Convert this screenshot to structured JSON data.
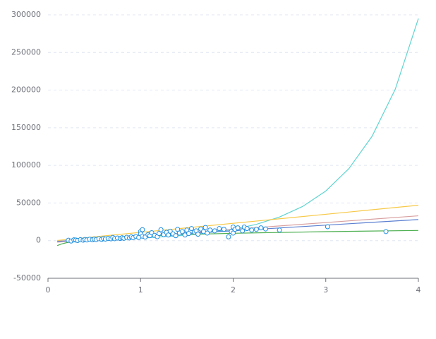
{
  "chart_data": {
    "type": "scatter",
    "xlim": [
      0,
      4
    ],
    "xticks": [
      0,
      1,
      2,
      3,
      4
    ],
    "ylim": [
      -50000,
      300000
    ],
    "yticks": [
      -50000,
      0,
      50000,
      100000,
      150000,
      200000,
      250000,
      300000
    ],
    "grid": true,
    "series": [
      {
        "kind": "line",
        "color": "#5fd4d0",
        "x": [
          0.2,
          0.5,
          1,
          1.5,
          2,
          2.25,
          2.5,
          2.75,
          3,
          3.25,
          3.5,
          3.75,
          4
        ],
        "values": [
          1025,
          1603,
          3372,
          7090,
          14900,
          21600,
          31350,
          45400,
          65900,
          95700,
          138600,
          201000,
          295000
        ]
      },
      {
        "kind": "line",
        "color": "#f7c948",
        "x": [
          0.1,
          4
        ],
        "values": [
          200,
          47000
        ]
      },
      {
        "kind": "line",
        "color": "#d9a0a0",
        "x": [
          0.1,
          4
        ],
        "values": [
          -2000,
          33000
        ]
      },
      {
        "kind": "line",
        "color": "#5b7fd0",
        "x": [
          0.1,
          4
        ],
        "values": [
          -1000,
          28000
        ]
      },
      {
        "kind": "line",
        "color": "#4caf50",
        "x": [
          0.1,
          0.15,
          0.2,
          0.3,
          0.5,
          0.75,
          1,
          1.5,
          2,
          3,
          4
        ],
        "values": [
          -6490,
          -4290,
          -2730,
          -540,
          2230,
          4430,
          5990,
          8190,
          9750,
          11940,
          13500
        ]
      },
      {
        "kind": "scatter",
        "color": "#1f8ee0",
        "x": [
          0.22,
          0.25,
          0.28,
          0.3,
          0.32,
          0.35,
          0.38,
          0.4,
          0.42,
          0.45,
          0.48,
          0.5,
          0.52,
          0.55,
          0.58,
          0.6,
          0.62,
          0.65,
          0.68,
          0.7,
          0.72,
          0.75,
          0.78,
          0.8,
          0.82,
          0.85,
          0.88,
          0.9,
          0.92,
          0.95,
          0.98,
          1.0,
          1.0,
          1.02,
          1.02,
          1.05,
          1.08,
          1.1,
          1.12,
          1.15,
          1.18,
          1.2,
          1.22,
          1.25,
          1.28,
          1.3,
          1.32,
          1.35,
          1.38,
          1.4,
          1.42,
          1.45,
          1.48,
          1.5,
          1.52,
          1.55,
          1.58,
          1.6,
          1.62,
          1.65,
          1.68,
          1.7,
          1.72,
          1.75,
          1.8,
          1.85,
          1.9,
          1.95,
          1.98,
          2.0,
          2.0,
          2.02,
          2.05,
          2.1,
          2.12,
          2.15,
          2.2,
          2.25,
          2.3,
          2.35,
          2.5,
          3.02,
          3.65
        ],
        "values": [
          500,
          -500,
          1000,
          800,
          200,
          1200,
          600,
          1500,
          900,
          1800,
          1100,
          2000,
          1400,
          2500,
          1700,
          2800,
          2100,
          3000,
          2400,
          4200,
          2600,
          3500,
          2900,
          3800,
          3100,
          4400,
          3600,
          5000,
          3900,
          5500,
          4200,
          12000,
          9000,
          6000,
          14500,
          4800,
          8000,
          6500,
          10500,
          7000,
          5200,
          9500,
          14500,
          8000,
          11000,
          7500,
          12500,
          9000,
          6500,
          15000,
          10000,
          12000,
          7500,
          14000,
          9500,
          16000,
          11500,
          13000,
          8500,
          15500,
          12000,
          17500,
          10000,
          14000,
          13000,
          16000,
          15000,
          5000,
          12000,
          18000,
          10000,
          15000,
          17000,
          13000,
          18000,
          16000,
          14000,
          15000,
          17000,
          15500,
          14000,
          18500,
          12000
        ]
      }
    ]
  }
}
